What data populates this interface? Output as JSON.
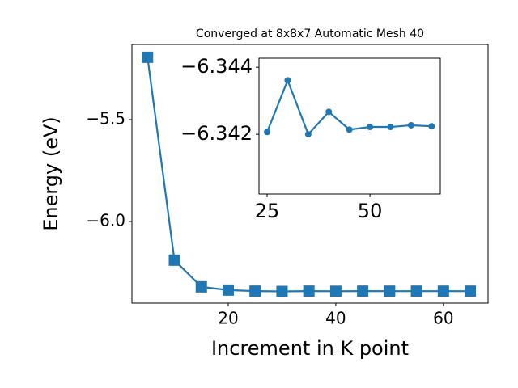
{
  "chart_data": [
    {
      "type": "line",
      "title": "Converged at 8x8x7 Automatic Mesh 40",
      "x_label": "Increment in K point",
      "y_label": "Energy (eV)",
      "x": [
        5,
        10,
        15,
        20,
        25,
        30,
        35,
        40,
        45,
        50,
        55,
        60,
        65
      ],
      "series": [
        {
          "color": "#1f77b4",
          "marker": "square",
          "values": [
            -5.194,
            -6.19,
            -6.321,
            -6.337,
            -6.342,
            -6.3436,
            -6.342,
            -6.3427,
            -6.3421,
            -6.3422,
            -6.3422,
            -6.3423,
            -6.3422
          ]
        }
      ],
      "xlim": [
        2.1,
        68.3
      ],
      "ylim": [
        -6.401,
        -5.131
      ],
      "xticks": [
        20,
        40,
        60
      ],
      "yticks": [
        {
          "value": -5.5,
          "label": "−5.5"
        },
        {
          "value": -6.0,
          "label": "−6.0"
        }
      ]
    },
    {
      "type": "line",
      "x": [
        25,
        30,
        35,
        40,
        45,
        50,
        55,
        60,
        65
      ],
      "series": [
        {
          "color": "#1f77b4",
          "marker": "circle",
          "values": [
            -6.34207,
            -6.34361,
            -6.342,
            -6.34267,
            -6.34214,
            -6.34222,
            -6.34222,
            -6.34227,
            -6.34224
          ]
        }
      ],
      "xlim": [
        23.03,
        67.1
      ],
      "ylim": [
        -6.34022,
        -6.34427
      ],
      "xticks": [
        25,
        50
      ],
      "yticks": [
        {
          "value": -6.344,
          "label": "−6.344"
        },
        {
          "value": -6.342,
          "label": "−6.342"
        }
      ]
    }
  ]
}
